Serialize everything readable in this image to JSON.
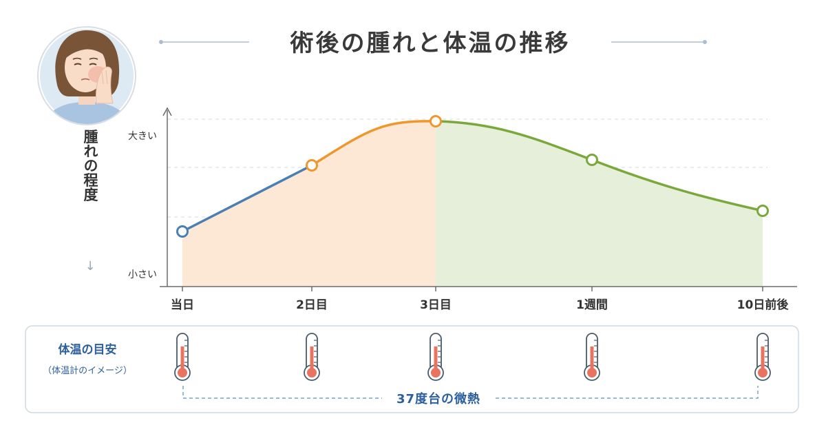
{
  "title": "術後の腫れと体温の推移",
  "colors": {
    "blue_segment": "#4a7fb5",
    "orange_segment": "#f0962a",
    "green_segment": "#7aa83a",
    "orange_fill": "#fde8d6",
    "green_fill": "#e6efd9",
    "temp_text": "#2c5f9e",
    "thermometer_red": "#e8735f"
  },
  "icons": {
    "avatar": "woman-holding-swollen-cheek-illustration",
    "thermometer": "thermometer-icon",
    "down_arrow": "down-arrow-icon"
  },
  "chart_data": {
    "type": "line",
    "title": "術後の腫れと体温の推移",
    "ylabel": "腫れの程度",
    "ylabel_arrow": "↓",
    "ytick_high": "大きい",
    "ytick_low": "小さい",
    "categories": [
      "当日",
      "2日目",
      "3日目",
      "1週間",
      "10日前後"
    ],
    "x_positions": [
      0,
      2,
      3,
      7,
      10
    ],
    "values": [
      0.2,
      0.68,
      1.0,
      0.72,
      0.35
    ],
    "ylim": [
      0,
      1.1
    ],
    "grid": "horizontal-dashed",
    "segments": [
      {
        "from": 0,
        "to": 1,
        "color_key": "blue_segment"
      },
      {
        "from": 1,
        "to": 2,
        "color_key": "orange_segment"
      },
      {
        "from": 2,
        "to": 4,
        "color_key": "green_segment"
      }
    ]
  },
  "temperature": {
    "label": "体温の目安",
    "sublabel": "（体温計のイメージ）",
    "note": "37度台の微熱",
    "fill_levels": [
      0.72,
      0.72,
      0.72,
      0.72,
      0.72
    ]
  }
}
